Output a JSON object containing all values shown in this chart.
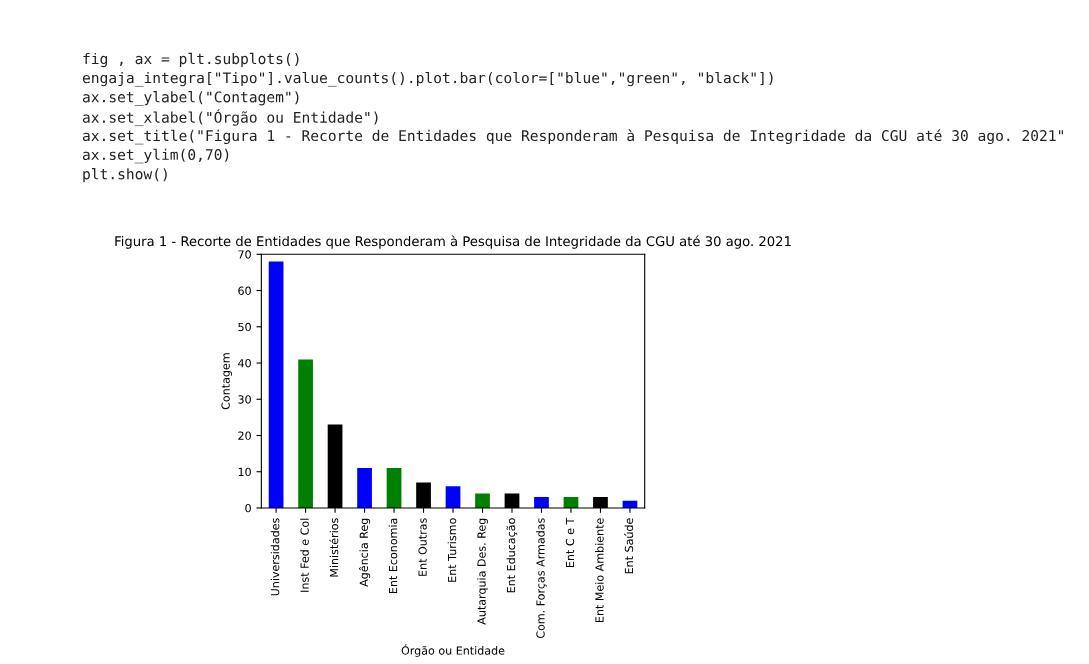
{
  "chart_data": {
    "type": "bar",
    "title": "Figura 1 - Recorte de Entidades que Responderam à Pesquisa de Integridade da CGU até 30 ago. 2021",
    "xlabel": "Órgão ou Entidade",
    "ylabel": "Contagem",
    "categories": [
      "Universidades",
      "Inst Fed e Col",
      "Ministérios",
      "Agência Reg",
      "Ent Economia",
      "Ent Outras",
      "Ent Turismo",
      "Autarquia Des. Reg",
      "Ent Educação",
      "Com. Forças Armadas",
      "Ent C e T",
      "Ent Meio Ambiente",
      "Ent Saúde"
    ],
    "values": [
      68,
      41,
      23,
      11,
      11,
      7,
      6,
      4,
      4,
      3,
      3,
      3,
      2
    ],
    "colors": [
      "#0000ff",
      "#008000",
      "#000000",
      "#0000ff",
      "#008000",
      "#000000",
      "#0000ff",
      "#008000",
      "#000000",
      "#0000ff",
      "#008000",
      "#000000",
      "#0000ff"
    ],
    "ylim": [
      0,
      70
    ],
    "yticks": [
      0,
      10,
      20,
      30,
      40,
      50,
      60,
      70
    ],
    "grid": false,
    "annotations": [
      "fig , ax = plt.subplots()",
      "engaja_integra[\"Tipo\"].value_counts().plot.bar(color=[\"blue\",\"green\", \"black\"])",
      "ax.set_ylabel(\"Contagem\")",
      "ax.set_xlabel(\"Órgão ou Entidade\")",
      "ax.set_title(\"Figura 1 - Recorte de Entidades que Responderam à Pesquisa de Integridade da CGU até 30 ago. 2021\"",
      "ax.set_ylim(0,70)",
      "plt.show()"
    ]
  }
}
